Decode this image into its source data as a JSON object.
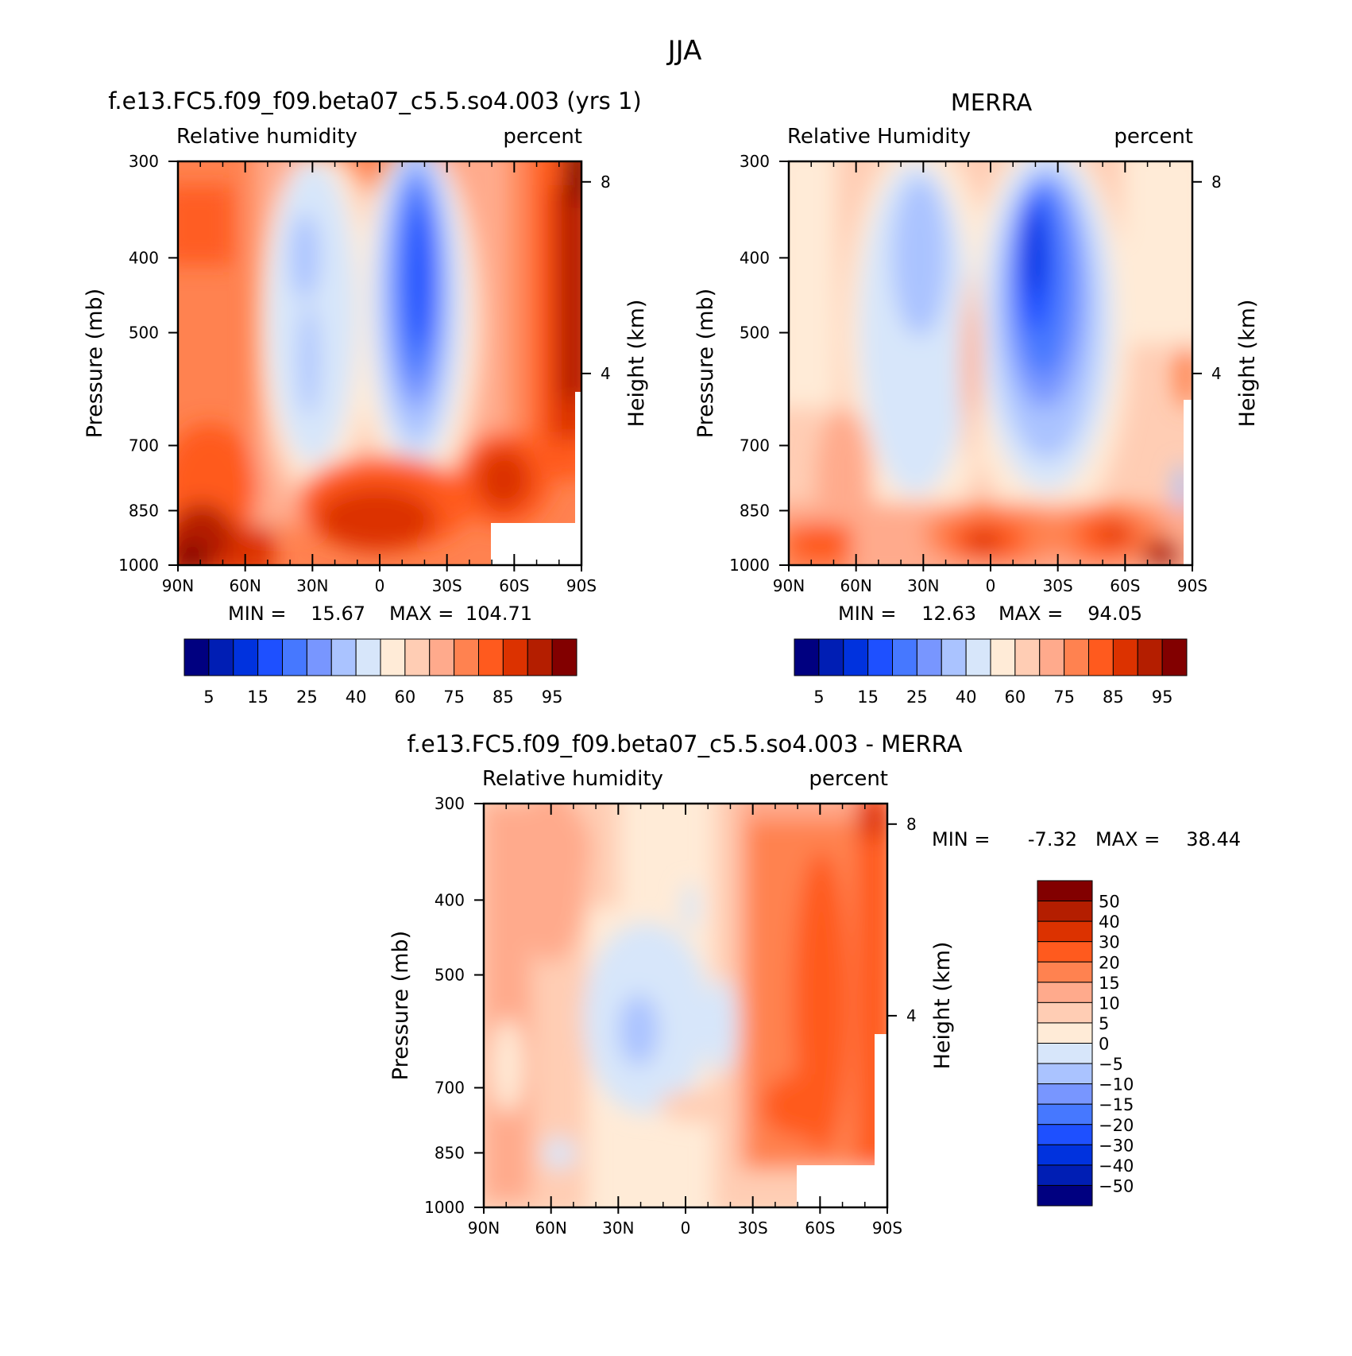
{
  "figure": {
    "season": "JJA"
  },
  "colors": {
    "humidity_levels": [
      "#000080",
      "#001eb4",
      "#0032de",
      "#1e50ff",
      "#4678ff",
      "#7896ff",
      "#aac3ff",
      "#d7e6fa",
      "#ffebd7",
      "#ffcdb4",
      "#ffaa8c",
      "#ff8250",
      "#ff5a1e",
      "#dc3200",
      "#b41e00",
      "#820000"
    ],
    "difference_levels": [
      "#000080",
      "#001eb4",
      "#0032de",
      "#1e50ff",
      "#4678ff",
      "#7896ff",
      "#aac3ff",
      "#d7e6fa",
      "#ffebd7",
      "#ffcdb4",
      "#ffaa8c",
      "#ff8250",
      "#ff5a1e",
      "#dc3200",
      "#b41e00",
      "#820000"
    ],
    "missing": "#ffffff"
  },
  "chart_data": [
    {
      "type": "heatmap",
      "title": "f.e13.FC5.f09_f09.beta07_c5.5.so4.003 (yrs 1)",
      "left_label": "Relative humidity",
      "right_label": "percent",
      "ylabel": "Pressure (mb)",
      "y2label": "Height (km)",
      "x_ticks": [
        "90N",
        "60N",
        "30N",
        "0",
        "30S",
        "60S",
        "90S"
      ],
      "y_ticks": [
        "300",
        "400",
        "500",
        "700",
        "850",
        "1000"
      ],
      "y2_ticks": [
        "8",
        "4"
      ],
      "min_label": "MIN =",
      "min_value": "15.67",
      "max_label": "MAX =",
      "max_value": "104.71",
      "colorbar_labels": [
        "5",
        "15",
        "25",
        "40",
        "60",
        "75",
        "85",
        "95"
      ],
      "latitude_range": [
        90,
        -90
      ],
      "pressure_range": [
        1000,
        300
      ]
    },
    {
      "type": "heatmap",
      "title": "MERRA",
      "left_label": "Relative Humidity",
      "right_label": "percent",
      "ylabel": "Pressure (mb)",
      "y2label": "Height (km)",
      "x_ticks": [
        "90N",
        "60N",
        "30N",
        "0",
        "30S",
        "60S",
        "90S"
      ],
      "y_ticks": [
        "300",
        "400",
        "500",
        "700",
        "850",
        "1000"
      ],
      "y2_ticks": [
        "8",
        "4"
      ],
      "min_label": "MIN =",
      "min_value": "12.63",
      "max_label": "MAX =",
      "max_value": "94.05",
      "colorbar_labels": [
        "5",
        "15",
        "25",
        "40",
        "60",
        "75",
        "85",
        "95"
      ],
      "latitude_range": [
        90,
        -90
      ],
      "pressure_range": [
        1000,
        300
      ]
    },
    {
      "type": "heatmap",
      "title": "f.e13.FC5.f09_f09.beta07_c5.5.so4.003 - MERRA",
      "left_label": "Relative humidity",
      "right_label": "percent",
      "ylabel": "Pressure (mb)",
      "y2label": "Height (km)",
      "x_ticks": [
        "90N",
        "60N",
        "30N",
        "0",
        "30S",
        "60S",
        "90S"
      ],
      "y_ticks": [
        "300",
        "400",
        "500",
        "700",
        "850",
        "1000"
      ],
      "y2_ticks": [
        "8",
        "4"
      ],
      "min_label": "MIN =",
      "min_value": "-7.32",
      "max_label": "MAX =",
      "max_value": "38.44",
      "colorbar_labels": [
        "50",
        "40",
        "30",
        "20",
        "15",
        "10",
        "5",
        "0",
        "-5",
        "-10",
        "-15",
        "-20",
        "-30",
        "-40",
        "-50"
      ],
      "latitude_range": [
        90,
        -90
      ],
      "pressure_range": [
        1000,
        300
      ]
    }
  ]
}
